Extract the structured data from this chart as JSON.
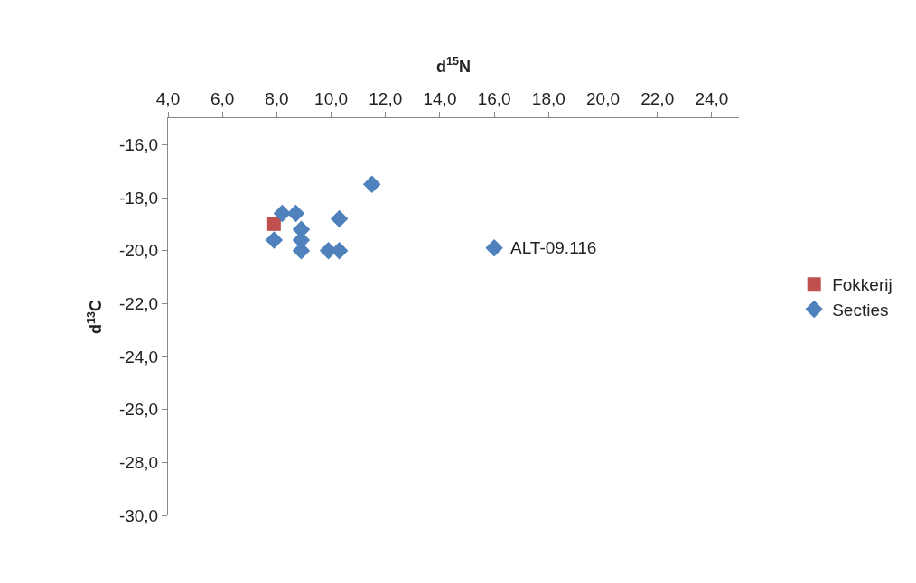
{
  "chart_data": {
    "type": "scatter",
    "xlabel": "d$^{15}$N",
    "ylabel": "d$^{13}$C",
    "xlim": [
      4,
      25
    ],
    "ylim": [
      -30,
      -15
    ],
    "xticks": [
      {
        "value": 4,
        "label": "4,0"
      },
      {
        "value": 6,
        "label": "6,0"
      },
      {
        "value": 8,
        "label": "8,0"
      },
      {
        "value": 10,
        "label": "10,0"
      },
      {
        "value": 12,
        "label": "12,0"
      },
      {
        "value": 14,
        "label": "14,0"
      },
      {
        "value": 16,
        "label": "16,0"
      },
      {
        "value": 18,
        "label": "18,0"
      },
      {
        "value": 20,
        "label": "20,0"
      },
      {
        "value": 22,
        "label": "22,0"
      },
      {
        "value": 24,
        "label": "24,0"
      }
    ],
    "yticks": [
      {
        "value": -16,
        "label": "-16,0"
      },
      {
        "value": -18,
        "label": "-18,0"
      },
      {
        "value": -20,
        "label": "-20,0"
      },
      {
        "value": -22,
        "label": "-22,0"
      },
      {
        "value": -24,
        "label": "-24,0"
      },
      {
        "value": -26,
        "label": "-26,0"
      },
      {
        "value": -28,
        "label": "-28,0"
      },
      {
        "value": -30,
        "label": "-30,0"
      }
    ],
    "series": [
      {
        "name": "Fokkerij",
        "color": "#c0504d",
        "marker": "square",
        "x": [
          7.9
        ],
        "values": [
          -19.0
        ]
      },
      {
        "name": "Secties",
        "color": "#4f81bd",
        "marker": "diamond",
        "x": [
          8.2,
          8.7,
          8.9,
          7.9,
          8.9,
          8.9,
          10.3,
          9.9,
          10.3,
          11.5,
          16.0
        ],
        "values": [
          -18.6,
          -18.6,
          -19.2,
          -19.6,
          -19.6,
          -20.0,
          -18.8,
          -20.0,
          -20.0,
          -17.5,
          -19.9
        ]
      }
    ],
    "annotations": [
      {
        "text": "ALT-09.116",
        "x": 16.0,
        "y": -19.9
      }
    ],
    "legend": "right",
    "grid": false
  }
}
